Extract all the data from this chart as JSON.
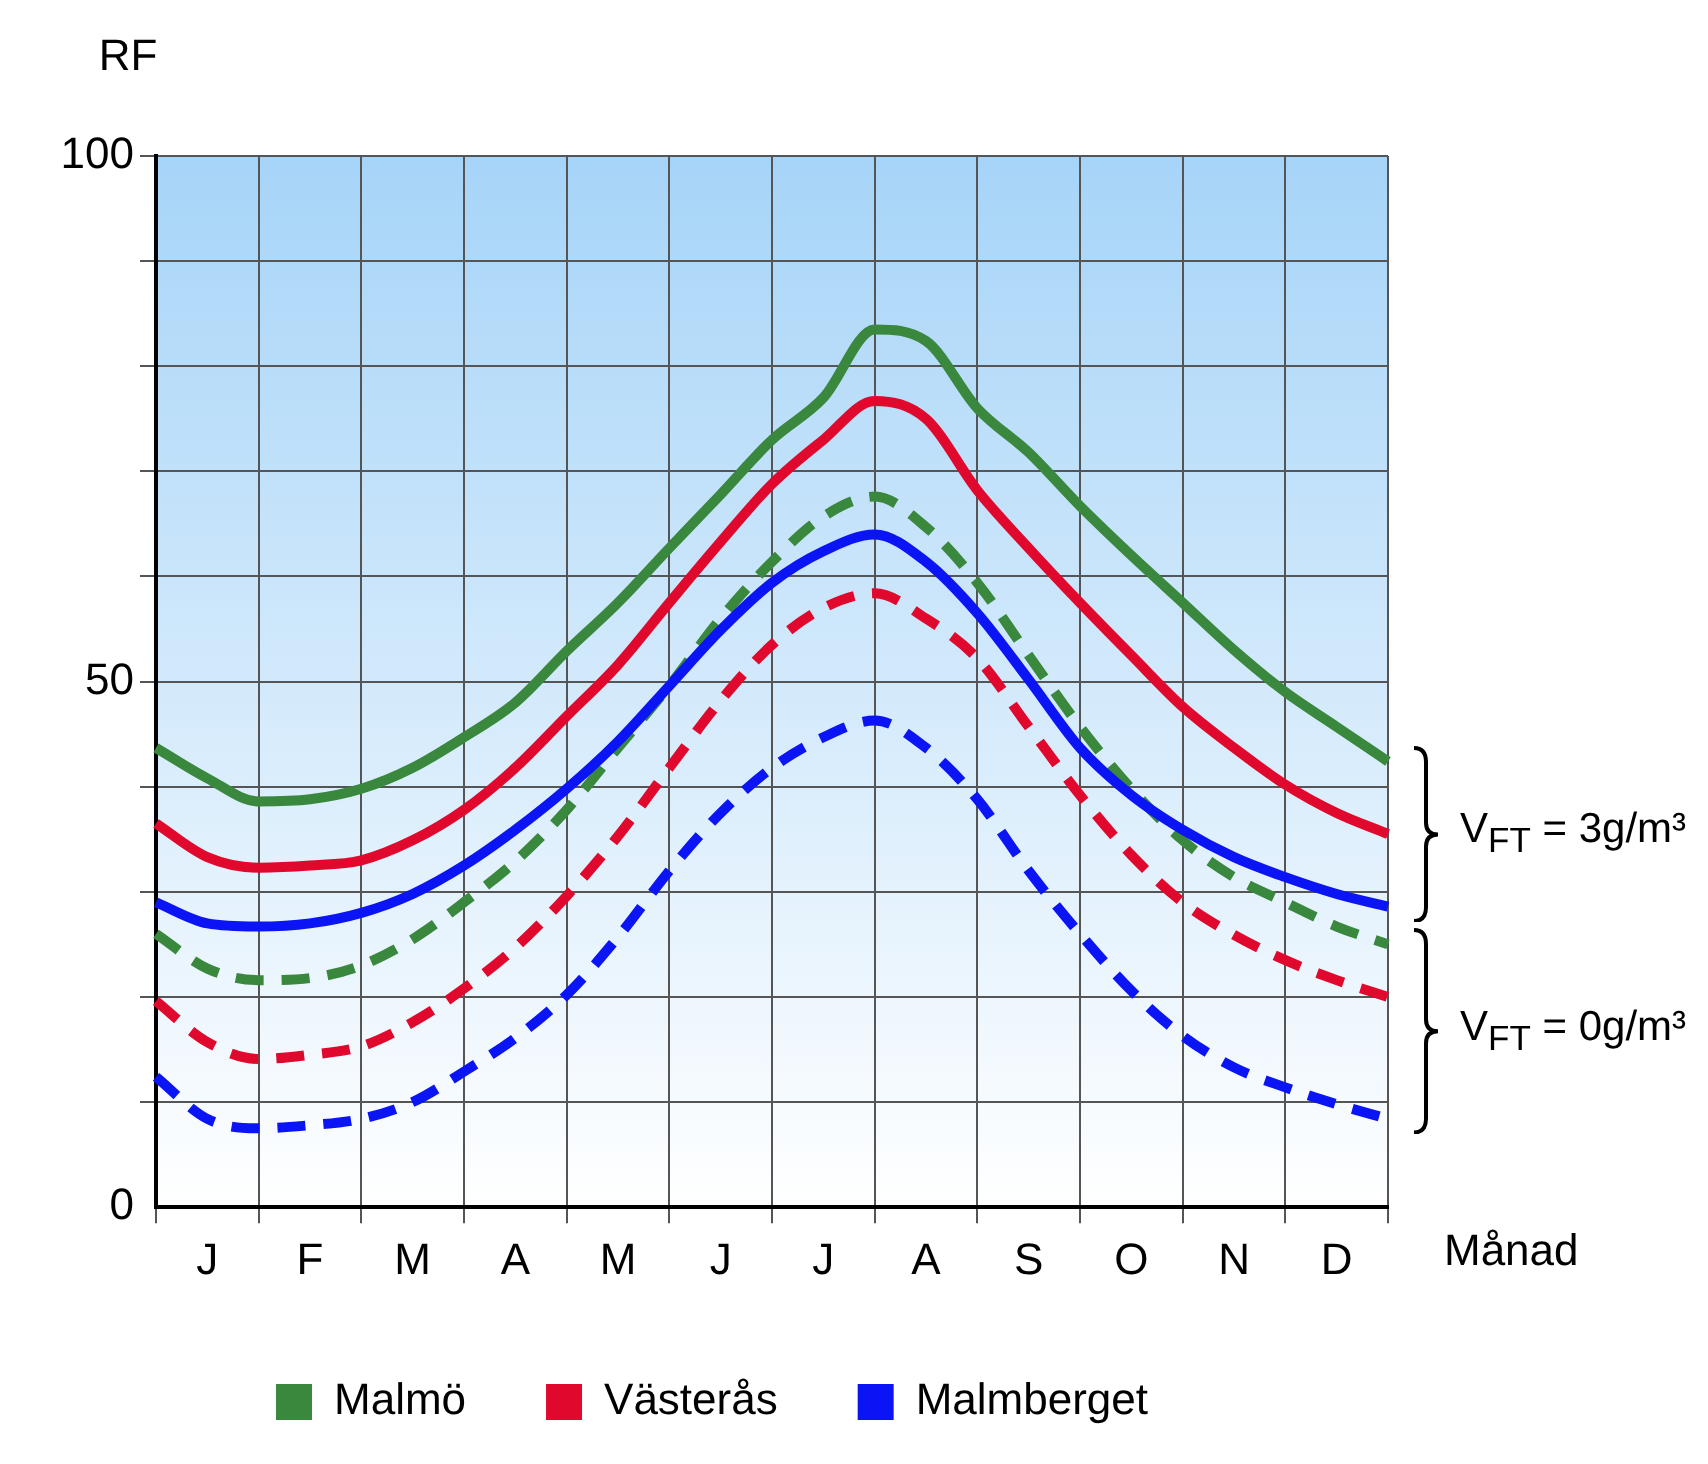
{
  "chart_data": {
    "type": "line",
    "ylabel": "RF",
    "xlabel": "Månad",
    "categories": [
      null,
      "J",
      null,
      "F",
      null,
      "M",
      null,
      "A",
      null,
      "M",
      null,
      "J",
      null,
      "J",
      null,
      "A",
      null,
      "S",
      null,
      "O",
      null,
      "N",
      null,
      "D",
      null
    ],
    "ylim": [
      0,
      100
    ],
    "yticks": [
      0,
      {
        "value": 10,
        "label": null
      },
      {
        "value": 20,
        "label": null
      },
      {
        "value": 30,
        "label": null
      },
      {
        "value": 40,
        "label": null
      },
      50,
      {
        "value": 60,
        "label": null
      },
      {
        "value": 70,
        "label": null
      },
      {
        "value": 80,
        "label": null
      },
      {
        "value": 90,
        "label": null
      },
      100
    ],
    "grid": true,
    "legend": "bottom",
    "marker": "none",
    "series": [
      {
        "name": "Malmö",
        "color": "#3a873e",
        "line_style": "solid",
        "values": [
          43.7,
          40.8,
          38.6,
          38.8,
          39.8,
          41.8,
          44.7,
          48,
          52.9,
          57.5,
          62.7,
          67.8,
          73,
          77,
          83.5,
          82.4,
          76,
          71.8,
          66.7,
          62,
          57.5,
          53,
          49,
          45.7,
          42.4
        ]
      },
      {
        "name": "Västerås",
        "color": "#e0082c",
        "line_style": "solid",
        "values": [
          36.5,
          33.3,
          32.3,
          32.5,
          33,
          34.9,
          37.8,
          41.8,
          46.7,
          51.6,
          57.5,
          63.3,
          68.8,
          73,
          76.7,
          75,
          68.2,
          62.7,
          57.5,
          52.5,
          47.6,
          43.7,
          40.2,
          37.5,
          35.5
        ]
      },
      {
        "name": "Malmberget",
        "color": "#0a14f5",
        "line_style": "solid",
        "values": [
          29,
          27,
          26.7,
          27,
          28,
          29.8,
          32.5,
          35.9,
          39.8,
          44.3,
          49.6,
          54.9,
          59.4,
          62.4,
          64,
          61.4,
          56.5,
          50.2,
          43.7,
          39.2,
          35.9,
          33.3,
          31.4,
          29.8,
          28.6
        ]
      },
      {
        "color": "#3a873e",
        "line_style": "dashed",
        "values": [
          26,
          22.7,
          21.6,
          21.8,
          23,
          25.5,
          29,
          32.9,
          37.8,
          43.7,
          49.6,
          56,
          61.4,
          65.7,
          67.6,
          64.7,
          59.4,
          52.5,
          45.7,
          39.8,
          34.9,
          31.4,
          29,
          26.7,
          25
        ]
      },
      {
        "color": "#e0082c",
        "line_style": "dashed",
        "values": [
          19.6,
          15.7,
          14.1,
          14.5,
          15.3,
          17.6,
          20.8,
          24.7,
          29.6,
          35.3,
          41.8,
          48.2,
          53.5,
          57,
          58.4,
          56,
          52.2,
          45.7,
          39.2,
          33.5,
          29,
          25.9,
          23.5,
          21.6,
          20
        ]
      },
      {
        "color": "#0a14f5",
        "line_style": "dashed",
        "values": [
          12.4,
          8.4,
          7.5,
          7.8,
          8.4,
          10,
          12.9,
          16.1,
          20.2,
          25.7,
          32,
          37.5,
          41.8,
          44.7,
          46.3,
          43.7,
          38.8,
          32,
          26,
          20.6,
          16.3,
          13.3,
          11.4,
          9.8,
          8.4
        ]
      }
    ],
    "annotations": [
      "V$_{FT}$ = 3g/m³",
      "V$_{FT}$ = 0g/m³"
    ]
  }
}
